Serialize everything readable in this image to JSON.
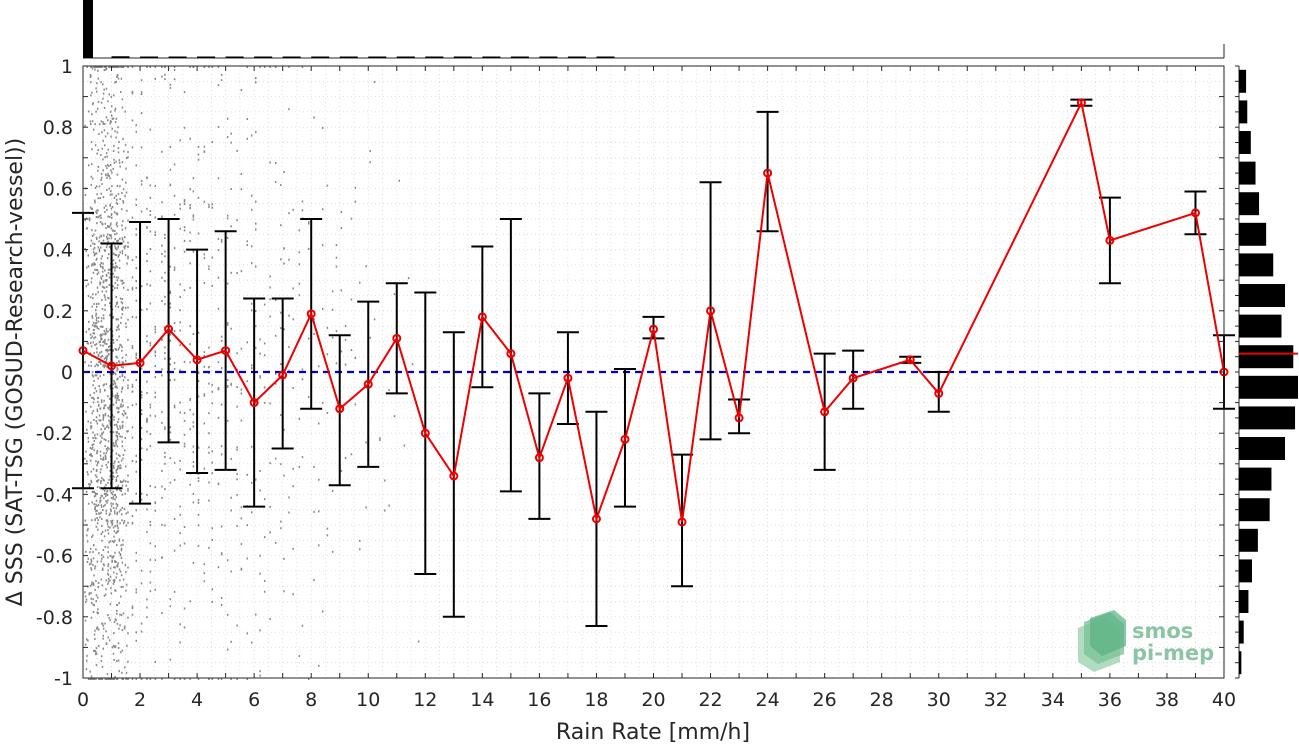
{
  "chart_data": {
    "type": "line",
    "xlabel": "Rain Rate [mm/h]",
    "ylabel": "Δ SSS (SAT-TSG (GOSUD-Research-vessel))",
    "xlim": [
      0,
      40
    ],
    "ylim": [
      -1,
      1
    ],
    "x_ticks": [
      "0",
      "2",
      "4",
      "6",
      "8",
      "10",
      "12",
      "14",
      "16",
      "18",
      "20",
      "22",
      "24",
      "26",
      "28",
      "30",
      "32",
      "34",
      "36",
      "38",
      "40"
    ],
    "y_ticks": [
      "-1",
      "-0.8",
      "-0.6",
      "-0.4",
      "-0.2",
      "0",
      "0.2",
      "0.4",
      "0.6",
      "0.8",
      "1"
    ],
    "grid": "minor-dotted",
    "zero_line": {
      "y": 0,
      "color": "#0000cc",
      "style": "dashed"
    },
    "series": [
      {
        "color": "#ee0000",
        "points": [
          {
            "x": 0,
            "y": 0.07,
            "err_low": -0.38,
            "err_high": 0.52
          },
          {
            "x": 1,
            "y": 0.02,
            "err_low": -0.38,
            "err_high": 0.42
          },
          {
            "x": 2,
            "y": 0.03,
            "err_low": -0.43,
            "err_high": 0.49
          },
          {
            "x": 3,
            "y": 0.14,
            "err_low": -0.23,
            "err_high": 0.5
          },
          {
            "x": 4,
            "y": 0.04,
            "err_low": -0.33,
            "err_high": 0.4
          },
          {
            "x": 5,
            "y": 0.07,
            "err_low": -0.32,
            "err_high": 0.46
          },
          {
            "x": 6,
            "y": -0.1,
            "err_low": -0.44,
            "err_high": 0.24
          },
          {
            "x": 7,
            "y": -0.01,
            "err_low": -0.25,
            "err_high": 0.24
          },
          {
            "x": 8,
            "y": 0.19,
            "err_low": -0.12,
            "err_high": 0.5
          },
          {
            "x": 9,
            "y": -0.12,
            "err_low": -0.37,
            "err_high": 0.12
          },
          {
            "x": 10,
            "y": -0.04,
            "err_low": -0.31,
            "err_high": 0.23
          },
          {
            "x": 11,
            "y": 0.11,
            "err_low": -0.07,
            "err_high": 0.29
          },
          {
            "x": 12,
            "y": -0.2,
            "err_low": -0.66,
            "err_high": 0.26
          },
          {
            "x": 13,
            "y": -0.34,
            "err_low": -0.8,
            "err_high": 0.13
          },
          {
            "x": 14,
            "y": 0.18,
            "err_low": -0.05,
            "err_high": 0.41
          },
          {
            "x": 15,
            "y": 0.06,
            "err_low": -0.39,
            "err_high": 0.5
          },
          {
            "x": 16,
            "y": -0.28,
            "err_low": -0.48,
            "err_high": -0.07
          },
          {
            "x": 17,
            "y": -0.02,
            "err_low": -0.17,
            "err_high": 0.13
          },
          {
            "x": 18,
            "y": -0.48,
            "err_low": -0.83,
            "err_high": -0.13
          },
          {
            "x": 19,
            "y": -0.22,
            "err_low": -0.44,
            "err_high": 0.01
          },
          {
            "x": 20,
            "y": 0.14,
            "err_low": 0.11,
            "err_high": 0.18
          },
          {
            "x": 21,
            "y": -0.49,
            "err_low": -0.7,
            "err_high": -0.27
          },
          {
            "x": 22,
            "y": 0.2,
            "err_low": -0.22,
            "err_high": 0.62
          },
          {
            "x": 23,
            "y": -0.15,
            "err_low": -0.2,
            "err_high": -0.09
          },
          {
            "x": 24,
            "y": 0.65,
            "err_low": 0.46,
            "err_high": 0.85
          },
          {
            "x": 26,
            "y": -0.13,
            "err_low": -0.32,
            "err_high": 0.06
          },
          {
            "x": 27,
            "y": -0.02,
            "err_low": -0.12,
            "err_high": 0.07
          },
          {
            "x": 29,
            "y": 0.04,
            "err_low": 0.03,
            "err_high": 0.05
          },
          {
            "x": 30,
            "y": -0.07,
            "err_low": -0.13,
            "err_high": 0.0
          },
          {
            "x": 35,
            "y": 0.88,
            "err_low": 0.87,
            "err_high": 0.89
          },
          {
            "x": 36,
            "y": 0.43,
            "err_low": 0.29,
            "err_high": 0.57
          },
          {
            "x": 39,
            "y": 0.52,
            "err_low": 0.45,
            "err_high": 0.59
          },
          {
            "x": 40,
            "y": 0.0,
            "err_low": -0.12,
            "err_high": 0.12
          }
        ]
      }
    ],
    "scatter_color": "#888888",
    "top_histogram": {
      "bins_x": [
        0,
        1,
        2,
        3,
        4,
        5,
        6,
        7,
        8,
        9,
        10,
        11,
        12,
        13,
        14,
        15,
        16,
        17,
        18
      ],
      "counts": [
        1.0,
        0.03,
        0.02,
        0.015,
        0.012,
        0.01,
        0.008,
        0.007,
        0.006,
        0.005,
        0.004,
        0.004,
        0.003,
        0.003,
        0.002,
        0.002,
        0.002,
        0.001,
        0.001
      ]
    },
    "right_histogram": {
      "bins_y": [
        0.95,
        0.85,
        0.75,
        0.65,
        0.55,
        0.45,
        0.35,
        0.25,
        0.15,
        0.05,
        -0.05,
        -0.15,
        -0.25,
        -0.35,
        -0.45,
        -0.55,
        -0.65,
        -0.75,
        -0.85,
        -0.95
      ],
      "counts": [
        0.12,
        0.14,
        0.2,
        0.28,
        0.34,
        0.46,
        0.58,
        0.78,
        0.72,
        0.92,
        1.0,
        0.95,
        0.78,
        0.55,
        0.52,
        0.32,
        0.22,
        0.16,
        0.08,
        0.04
      ],
      "mean_marker_y": 0.06,
      "mean_marker_color": "#ee0000"
    }
  },
  "logo": {
    "line1": "smos",
    "line2": "pi-mep"
  }
}
